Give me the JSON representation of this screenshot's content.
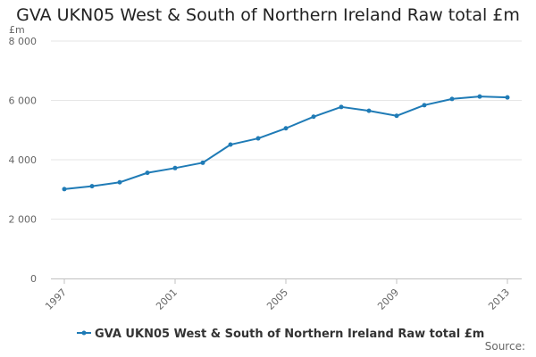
{
  "chart_data": {
    "type": "line",
    "title": "GVA UKN05 West & South of Northern Ireland Raw total £m",
    "ylabel": "£m",
    "xlabel": "",
    "x": [
      1997,
      1998,
      1999,
      2000,
      2001,
      2002,
      2003,
      2004,
      2005,
      2006,
      2007,
      2008,
      2009,
      2010,
      2011,
      2012,
      2013
    ],
    "x_ticks": [
      "1997",
      "2001",
      "2005",
      "2009",
      "2013"
    ],
    "y_ticks": [
      "0",
      "2 000",
      "4 000",
      "6 000",
      "8 000"
    ],
    "ylim": [
      0,
      8000
    ],
    "grid": true,
    "legend_position": "bottom",
    "series": [
      {
        "name": "GVA UKN05 West & South of Northern Ireland Raw total £m",
        "color": "#1f7bb6",
        "values": [
          3010,
          3110,
          3240,
          3560,
          3720,
          3900,
          4510,
          4720,
          5060,
          5450,
          5780,
          5650,
          5480,
          5840,
          6050,
          6130,
          6100
        ]
      }
    ]
  },
  "source_label": "Source:"
}
